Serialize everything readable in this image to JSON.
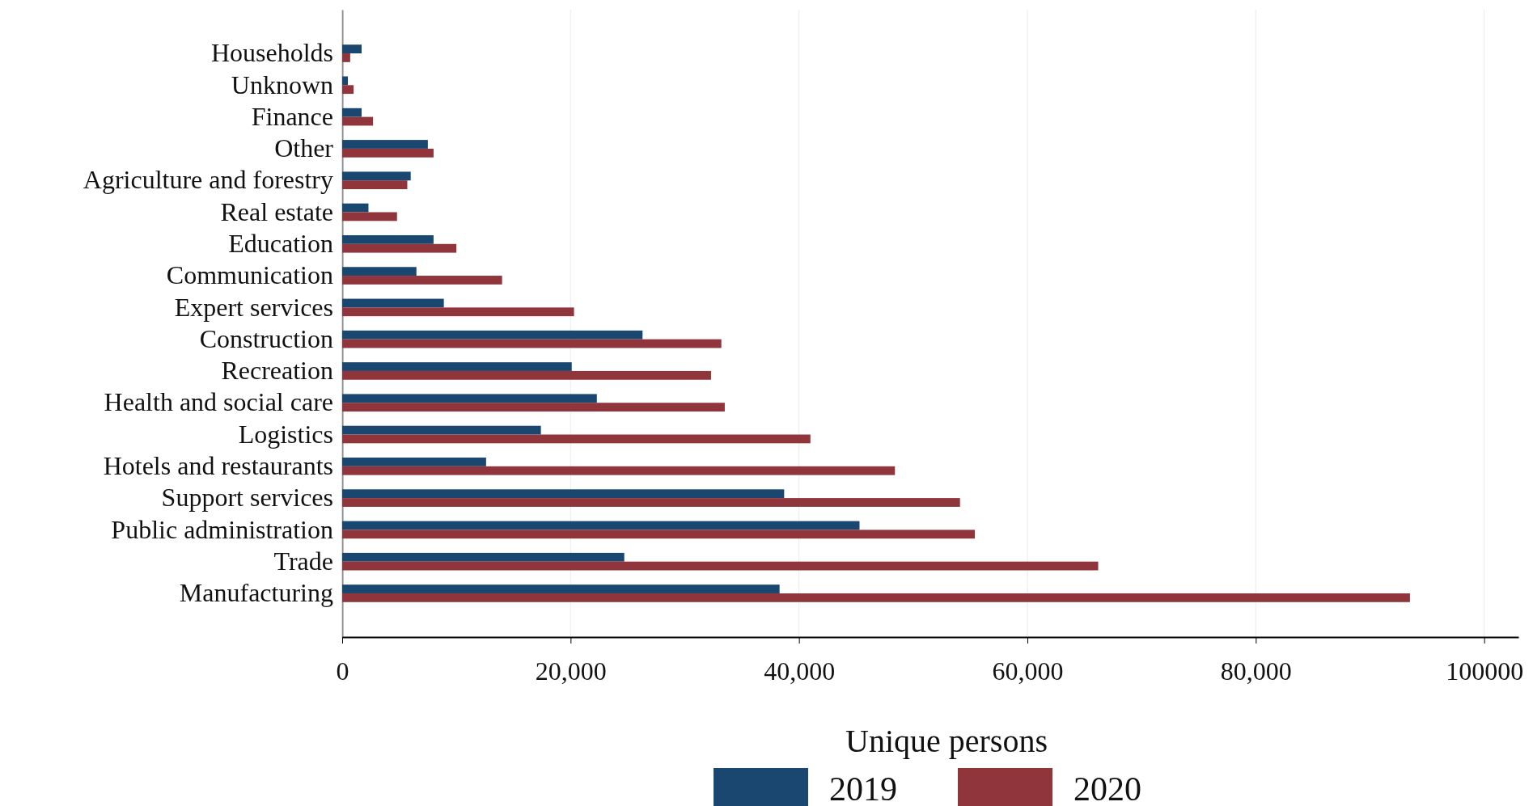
{
  "chart_data": {
    "type": "bar",
    "orientation": "horizontal",
    "xlabel": "Unique persons",
    "categories": [
      "Households",
      "Unknown",
      "Finance",
      "Other",
      "Agriculture and forestry",
      "Real estate",
      "Education",
      "Communication",
      "Expert services",
      "Construction",
      "Recreation",
      "Health and social care",
      "Logistics",
      "Hotels and restaurants",
      "Support services",
      "Public administration",
      "Trade",
      "Manufacturing"
    ],
    "series": [
      {
        "name": "2019",
        "color": "#1a476f",
        "values": [
          1700,
          500,
          1700,
          7500,
          6000,
          2300,
          8000,
          6500,
          8900,
          26300,
          20100,
          22300,
          17400,
          12600,
          38700,
          45300,
          24700,
          38300
        ]
      },
      {
        "name": "2020",
        "color": "#90353b",
        "values": [
          700,
          1000,
          2700,
          8000,
          5700,
          4800,
          10000,
          14000,
          20300,
          33200,
          32300,
          33500,
          41000,
          48400,
          54100,
          55400,
          66200,
          93500
        ]
      }
    ],
    "xlim": [
      0,
      103000
    ],
    "xticks": [
      0,
      {
        "value": 20000,
        "label": "20,000"
      },
      {
        "value": 40000,
        "label": "40,000"
      },
      {
        "value": 60000,
        "label": "60,000"
      },
      {
        "value": 80000,
        "label": "80,000"
      },
      100000
    ],
    "grid": "x",
    "legend": "bottom"
  }
}
